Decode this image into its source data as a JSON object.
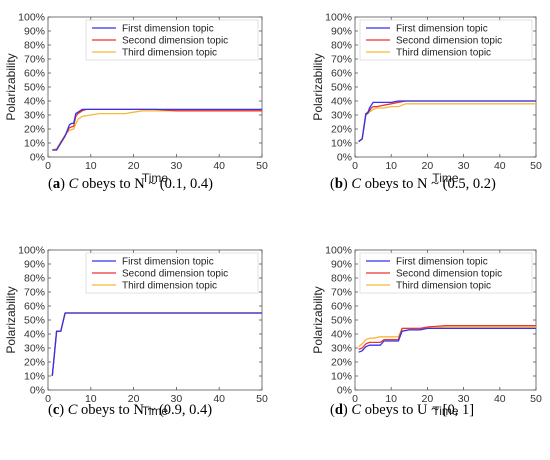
{
  "colors": {
    "first": "#3333ee",
    "second": "#ee3333",
    "third": "#f5b93a",
    "axis": "#555555",
    "grid": "#d8d8d8"
  },
  "chart_data": [
    {
      "type": "line",
      "panel": "a",
      "caption": {
        "label": "(a)",
        "var": "C",
        "text": " obeys to N ~ (0.1, 0.4)"
      },
      "xlabel": "Time",
      "ylabel": "Polarizability",
      "xlim": [
        0,
        50
      ],
      "ylim": [
        0,
        100
      ],
      "xticks": [
        0,
        10,
        20,
        30,
        40,
        50
      ],
      "xtick_labels": [
        "0",
        "10",
        "20",
        "30",
        "40",
        "50"
      ],
      "yticks": [
        0,
        10,
        20,
        30,
        40,
        50,
        60,
        70,
        80,
        90,
        100
      ],
      "ytick_labels": [
        "0%",
        "10%",
        "20%",
        "30%",
        "40%",
        "50%",
        "60%",
        "70%",
        "80%",
        "90%",
        "100%"
      ],
      "legend_position": "top-right",
      "series": [
        {
          "name": "First dimension topic",
          "color_key": "first",
          "x": [
            1,
            2,
            3,
            4,
            5,
            5.5,
            6,
            6.5,
            7,
            7.5,
            8,
            9,
            10,
            15,
            20,
            25,
            30,
            35,
            40,
            45,
            50
          ],
          "y": [
            5,
            5,
            10,
            15,
            23,
            24,
            24,
            31,
            32,
            33,
            34,
            34,
            34,
            34,
            34,
            34,
            34,
            34,
            34,
            34,
            34
          ]
        },
        {
          "name": "Second dimension topic",
          "color_key": "second",
          "x": [
            1,
            2,
            3,
            4,
            5,
            6,
            6.5,
            7,
            8,
            9,
            10,
            15,
            20,
            25,
            30,
            35,
            40,
            45,
            50
          ],
          "y": [
            5,
            5,
            10,
            15,
            21,
            22,
            29,
            31,
            33,
            34,
            34,
            34,
            34,
            34,
            33,
            33,
            33,
            33,
            33
          ]
        },
        {
          "name": "Third dimension topic",
          "color_key": "third",
          "x": [
            1,
            2,
            3,
            4,
            5,
            6,
            7,
            8,
            10,
            12,
            15,
            18,
            20,
            22,
            25,
            30,
            35,
            40,
            45,
            50
          ],
          "y": [
            5,
            6,
            11,
            16,
            19,
            20,
            27,
            29,
            30,
            31,
            31,
            31,
            32,
            33,
            33,
            33,
            33,
            33,
            33,
            33
          ]
        }
      ]
    },
    {
      "type": "line",
      "panel": "b",
      "caption": {
        "label": "(b)",
        "var": "C",
        "text": " obeys to N ~ (0.5, 0.2)"
      },
      "xlabel": "Time",
      "ylabel": "Polarizability",
      "xlim": [
        0,
        50
      ],
      "ylim": [
        0,
        100
      ],
      "xticks": [
        0,
        10,
        20,
        30,
        40,
        50
      ],
      "xtick_labels": [
        "0",
        "10",
        "20",
        "30",
        "40",
        "50"
      ],
      "yticks": [
        0,
        10,
        20,
        30,
        40,
        50,
        60,
        70,
        80,
        90,
        100
      ],
      "ytick_labels": [
        "0%",
        "10%",
        "20%",
        "30%",
        "40%",
        "50%",
        "60%",
        "70%",
        "80%",
        "90%",
        "100%"
      ],
      "legend_position": "top-right",
      "series": [
        {
          "name": "First dimension topic",
          "color_key": "first",
          "x": [
            1,
            2,
            3,
            3.5,
            4,
            4.5,
            5,
            10,
            12,
            14,
            20,
            30,
            40,
            50
          ],
          "y": [
            11,
            13,
            31,
            31,
            35,
            37,
            39,
            39,
            40,
            40,
            40,
            40,
            40,
            40
          ]
        },
        {
          "name": "Second dimension topic",
          "color_key": "second",
          "x": [
            1,
            2,
            3,
            3.5,
            4,
            4.5,
            5,
            6,
            8,
            10,
            12,
            14,
            20,
            30,
            40,
            50
          ],
          "y": [
            11,
            13,
            31,
            32,
            33,
            35,
            36,
            36,
            37,
            38,
            39,
            40,
            40,
            40,
            40,
            40
          ]
        },
        {
          "name": "Third dimension topic",
          "color_key": "third",
          "x": [
            1,
            2,
            3,
            4,
            5,
            6,
            8,
            10,
            12,
            14,
            20,
            30,
            40,
            50
          ],
          "y": [
            11,
            13,
            30,
            32,
            34,
            35,
            35,
            36,
            36,
            38,
            38,
            38,
            38,
            38
          ]
        }
      ]
    },
    {
      "type": "line",
      "panel": "c",
      "caption": {
        "label": "(c)",
        "var": "C",
        "text": " obeys to N ~ (0.9, 0.4)"
      },
      "xlabel": "Time",
      "ylabel": "Polarizability",
      "xlim": [
        0,
        50
      ],
      "ylim": [
        0,
        100
      ],
      "xticks": [
        0,
        10,
        20,
        30,
        40,
        50
      ],
      "xtick_labels": [
        "0",
        "10",
        "20",
        "30",
        "40",
        "50"
      ],
      "yticks": [
        0,
        10,
        20,
        30,
        40,
        50,
        60,
        70,
        80,
        90,
        100
      ],
      "ytick_labels": [
        "0%",
        "10%",
        "20%",
        "30%",
        "40%",
        "50%",
        "60%",
        "70%",
        "80%",
        "90%",
        "100%"
      ],
      "legend_position": "top-right",
      "series": [
        {
          "name": "First dimension topic",
          "color_key": "first",
          "x": [
            1,
            2,
            3,
            4,
            5,
            10,
            20,
            30,
            40,
            50
          ],
          "y": [
            10,
            42,
            42,
            55,
            55,
            55,
            55,
            55,
            55,
            55
          ]
        },
        {
          "name": "Second dimension topic",
          "color_key": "second",
          "x": [
            1,
            2,
            3,
            4,
            5,
            10,
            20,
            30,
            40,
            50
          ],
          "y": [
            10,
            42,
            42,
            55,
            55,
            55,
            55,
            55,
            55,
            55
          ]
        },
        {
          "name": "Third dimension topic",
          "color_key": "third",
          "x": [
            1,
            2,
            3,
            4,
            5,
            10,
            20,
            30,
            40,
            50
          ],
          "y": [
            10,
            42,
            42,
            55,
            55,
            55,
            55,
            55,
            55,
            55
          ]
        }
      ]
    },
    {
      "type": "line",
      "panel": "d",
      "caption": {
        "label": "(d)",
        "var": "C",
        "text": " obeys to U ~ [0, 1]"
      },
      "xlabel": "Time",
      "ylabel": "Polarizability",
      "xlim": [
        0,
        50
      ],
      "ylim": [
        0,
        100
      ],
      "xticks": [
        0,
        10,
        20,
        30,
        40,
        50
      ],
      "xtick_labels": [
        "0",
        "10",
        "20",
        "30",
        "40",
        "50"
      ],
      "yticks": [
        0,
        10,
        20,
        30,
        40,
        50,
        60,
        70,
        80,
        90,
        100
      ],
      "ytick_labels": [
        "0%",
        "10%",
        "20%",
        "30%",
        "40%",
        "50%",
        "60%",
        "70%",
        "80%",
        "90%",
        "100%"
      ],
      "legend_position": "top-right",
      "series": [
        {
          "name": "First dimension topic",
          "color_key": "first",
          "x": [
            1,
            2,
            3,
            4,
            5,
            7,
            8,
            9,
            10,
            11,
            12,
            13,
            15,
            18,
            20,
            25,
            30,
            40,
            50
          ],
          "y": [
            27,
            28,
            31,
            32,
            32,
            32,
            35,
            35,
            35,
            35,
            35,
            42,
            43,
            43,
            44,
            44,
            44,
            44,
            44
          ]
        },
        {
          "name": "Second dimension topic",
          "color_key": "second",
          "x": [
            1,
            2,
            3,
            4,
            5,
            7,
            8,
            9,
            10,
            11,
            12,
            13,
            15,
            18,
            20,
            25,
            30,
            40,
            50
          ],
          "y": [
            29,
            30,
            33,
            34,
            34,
            34,
            36,
            36,
            36,
            36,
            36,
            44,
            44,
            44,
            45,
            46,
            46,
            46,
            46
          ]
        },
        {
          "name": "Third dimension topic",
          "color_key": "third",
          "x": [
            1,
            2,
            3,
            4,
            5,
            7,
            8,
            9,
            10,
            11,
            12,
            13,
            15,
            18,
            20,
            25,
            30,
            40,
            50
          ],
          "y": [
            31,
            33,
            36,
            37,
            37,
            38,
            38,
            38,
            38,
            38,
            38,
            44,
            44,
            44,
            44,
            45,
            45,
            45,
            45
          ]
        }
      ]
    }
  ]
}
